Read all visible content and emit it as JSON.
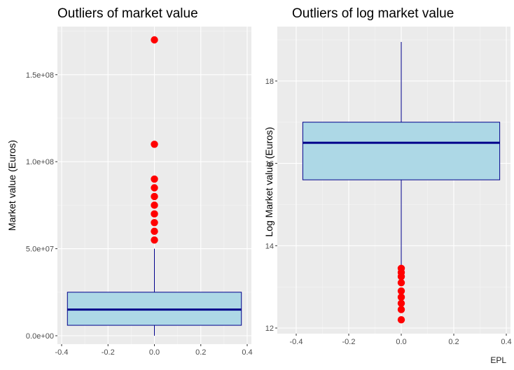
{
  "chart_data": [
    {
      "type": "box",
      "title": "Outliers of market value",
      "xlabel": "",
      "ylabel": "Market value (Euros)",
      "xlim": [
        -0.4,
        0.4
      ],
      "ylim": [
        0,
        170000000
      ],
      "x_ticks": [
        -0.4,
        -0.2,
        0.0,
        0.2,
        0.4
      ],
      "x_tick_labels": [
        "-0.4",
        "-0.2",
        "0.0",
        "0.2",
        "0.4"
      ],
      "y_ticks": [
        0,
        50000000,
        100000000,
        150000000
      ],
      "y_tick_labels": [
        "0.0e+00",
        "5.0e+07",
        "1.0e+08",
        "1.5e+08"
      ],
      "box": {
        "x_min": -0.375,
        "x_max": 0.375,
        "whisker_low": 0,
        "q1": 6000000,
        "median": 15000000,
        "q3": 25000000,
        "whisker_high": 50000000
      },
      "outlier_x": 0,
      "outliers": [
        55000000,
        60000000,
        65000000,
        70000000,
        75000000,
        80000000,
        85000000,
        90000000,
        110000000,
        170000000
      ],
      "grid": true,
      "colors": {
        "box_fill": "#add8e6",
        "box_border": "#00008b",
        "outlier": "#ff0000",
        "panel": "#ebebeb"
      }
    },
    {
      "type": "box",
      "title": "Outliers of log market value",
      "xlabel": "",
      "ylabel": "Log Market value (Euros)",
      "xlim": [
        -0.4,
        0.4
      ],
      "ylim": [
        12,
        19
      ],
      "x_ticks": [
        -0.4,
        -0.2,
        0.0,
        0.2,
        0.4
      ],
      "x_tick_labels": [
        "-0.4",
        "-0.2",
        "0.0",
        "0.2",
        "0.4"
      ],
      "y_ticks": [
        12,
        14,
        16,
        18
      ],
      "y_tick_labels": [
        "12",
        "14",
        "16",
        "18"
      ],
      "box": {
        "x_min": -0.375,
        "x_max": 0.375,
        "whisker_low": 13.5,
        "q1": 15.6,
        "median": 16.5,
        "q3": 17.0,
        "whisker_high": 18.95
      },
      "outlier_x": 0,
      "outliers": [
        12.2,
        12.45,
        12.6,
        12.75,
        12.9,
        13.1,
        13.25,
        13.35,
        13.45
      ],
      "grid": true,
      "caption": "EPL",
      "colors": {
        "box_fill": "#add8e6",
        "box_border": "#00008b",
        "outlier": "#ff0000",
        "panel": "#ebebeb"
      }
    }
  ]
}
